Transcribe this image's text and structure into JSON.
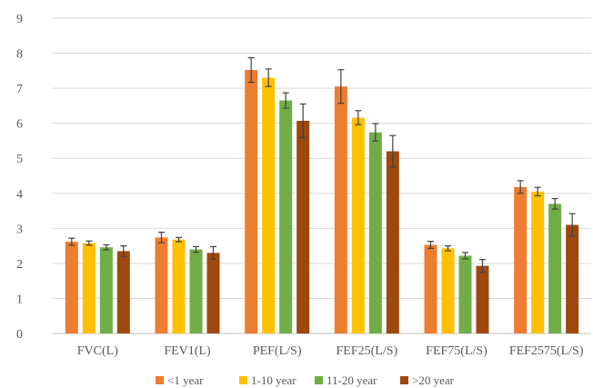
{
  "chart_data": {
    "type": "bar",
    "title": "",
    "xlabel": "",
    "ylabel": "",
    "ylim": [
      0,
      9
    ],
    "yticks": [
      0,
      1,
      2,
      3,
      4,
      5,
      6,
      7,
      8,
      9
    ],
    "grid": true,
    "legend_position": "bottom",
    "categories": [
      "FVC(L)",
      "FEV1(L)",
      "PEF(L/S)",
      "FEF25(L/S)",
      "FEF75(L/S)",
      "FEF2575(L/S)"
    ],
    "series": [
      {
        "name": "<1 year",
        "color": "#ED7D31",
        "values": [
          2.62,
          2.74,
          7.52,
          7.05,
          2.53,
          4.18
        ],
        "errors": [
          0.1,
          0.15,
          0.35,
          0.48,
          0.1,
          0.18
        ]
      },
      {
        "name": "1-10 year",
        "color": "#FFC000",
        "values": [
          2.58,
          2.68,
          7.3,
          6.16,
          2.43,
          4.05
        ],
        "errors": [
          0.06,
          0.06,
          0.25,
          0.2,
          0.07,
          0.12
        ]
      },
      {
        "name": "11-20 year",
        "color": "#70AD47",
        "values": [
          2.46,
          2.4,
          6.65,
          5.74,
          2.22,
          3.7
        ],
        "errors": [
          0.07,
          0.08,
          0.22,
          0.25,
          0.09,
          0.15
        ]
      },
      {
        "name": ">20 year",
        "color": "#9E480E",
        "values": [
          2.35,
          2.3,
          6.07,
          5.2,
          1.93,
          3.1
        ],
        "errors": [
          0.15,
          0.18,
          0.48,
          0.45,
          0.18,
          0.32
        ]
      }
    ]
  }
}
